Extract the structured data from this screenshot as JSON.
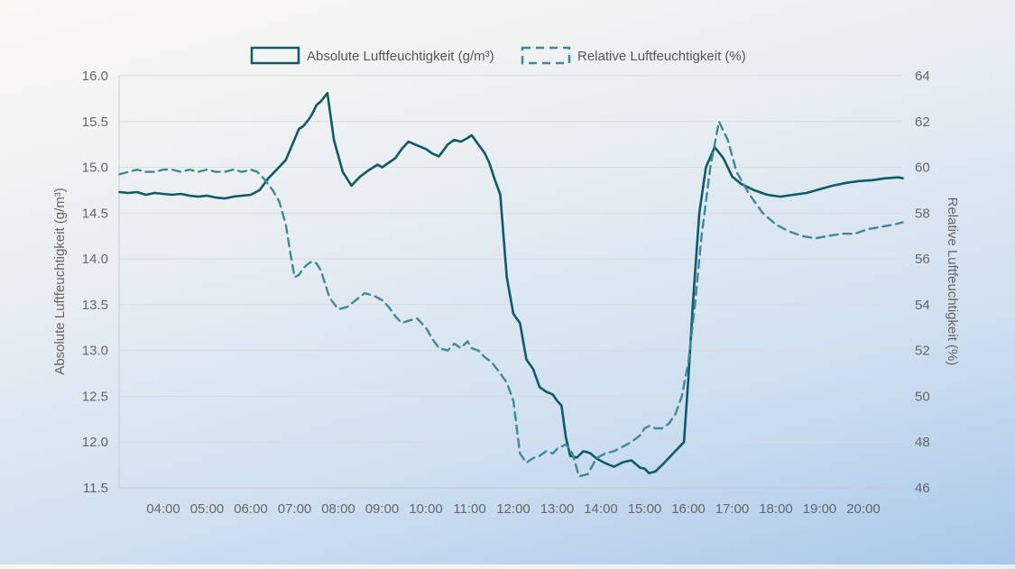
{
  "chart_data": {
    "type": "line",
    "legend_position": "top-center",
    "grid": true,
    "colors": {
      "absolute": "#0e5a66",
      "relative": "#3f8a92",
      "grid": "#d6dbe0",
      "axis": "#c4ccd4",
      "text": "#666666"
    },
    "x_axis": {
      "label": "",
      "ticks": [
        "04:00",
        "05:00",
        "06:00",
        "07:00",
        "08:00",
        "09:00",
        "10:00",
        "11:00",
        "12:00",
        "13:00",
        "14:00",
        "15:00",
        "16:00",
        "17:00",
        "18:00",
        "19:00",
        "20:00"
      ]
    },
    "y_left": {
      "label": "Absolute Luftfeuchtigkeit (g/m³)",
      "min": 11.5,
      "max": 16.0,
      "ticks": [
        "11.5",
        "12.0",
        "12.5",
        "13.0",
        "13.5",
        "14.0",
        "14.5",
        "15.0",
        "15.5",
        "16.0"
      ]
    },
    "y_right": {
      "label": "Relative Luftfeuchtigkeit (%)",
      "min": 46,
      "max": 64,
      "ticks": [
        "46",
        "48",
        "50",
        "52",
        "54",
        "56",
        "58",
        "60",
        "62",
        "64"
      ]
    },
    "x_range_hours": [
      3.0,
      20.9
    ],
    "series": [
      {
        "name": "Absolute Luftfeuchtigkeit (g/m³)",
        "axis": "left",
        "style": "solid",
        "x": [
          3.0,
          3.2,
          3.4,
          3.6,
          3.8,
          4.0,
          4.2,
          4.4,
          4.6,
          4.8,
          5.0,
          5.2,
          5.4,
          5.6,
          5.8,
          6.0,
          6.2,
          6.4,
          6.6,
          6.8,
          6.95,
          7.1,
          7.2,
          7.32,
          7.4,
          7.5,
          7.6,
          7.75,
          7.9,
          8.1,
          8.3,
          8.5,
          8.7,
          8.9,
          9.0,
          9.15,
          9.3,
          9.45,
          9.6,
          9.8,
          10.0,
          10.15,
          10.3,
          10.5,
          10.65,
          10.8,
          10.95,
          11.05,
          11.2,
          11.35,
          11.45,
          11.55,
          11.7,
          11.85,
          12.0,
          12.15,
          12.3,
          12.45,
          12.6,
          12.75,
          12.9,
          13.0,
          13.1,
          13.2,
          13.3,
          13.45,
          13.6,
          13.75,
          13.9,
          14.1,
          14.3,
          14.5,
          14.7,
          14.9,
          15.0,
          15.1,
          15.25,
          15.4,
          15.5,
          15.6,
          15.7,
          15.8,
          15.9,
          16.0,
          16.1,
          16.25,
          16.4,
          16.6,
          16.8,
          17.0,
          17.2,
          17.5,
          17.8,
          18.1,
          18.4,
          18.7,
          19.0,
          19.3,
          19.6,
          19.9,
          20.2,
          20.5,
          20.8,
          20.9
        ],
        "values": [
          14.73,
          14.72,
          14.73,
          14.7,
          14.72,
          14.71,
          14.7,
          14.71,
          14.69,
          14.68,
          14.69,
          14.67,
          14.66,
          14.68,
          14.69,
          14.7,
          14.75,
          14.88,
          14.98,
          15.08,
          15.25,
          15.42,
          15.45,
          15.52,
          15.58,
          15.68,
          15.72,
          15.81,
          15.3,
          14.95,
          14.8,
          14.9,
          14.97,
          15.03,
          15.0,
          15.05,
          15.1,
          15.2,
          15.28,
          15.24,
          15.2,
          15.15,
          15.12,
          15.25,
          15.3,
          15.28,
          15.32,
          15.35,
          15.25,
          15.15,
          15.05,
          14.9,
          14.7,
          13.8,
          13.4,
          13.3,
          12.9,
          12.8,
          12.6,
          12.55,
          12.52,
          12.45,
          12.4,
          12.05,
          11.85,
          11.83,
          11.9,
          11.88,
          11.82,
          11.77,
          11.73,
          11.78,
          11.8,
          11.72,
          11.71,
          11.66,
          11.68,
          11.75,
          11.8,
          11.85,
          11.9,
          11.95,
          12.0,
          12.7,
          13.5,
          14.5,
          15.0,
          15.22,
          15.1,
          14.9,
          14.82,
          14.75,
          14.7,
          14.68,
          14.7,
          14.72,
          14.76,
          14.8,
          14.83,
          14.85,
          14.86,
          14.88,
          14.89,
          14.88
        ]
      },
      {
        "name": "Relative Luftfeuchtigkeit (%)",
        "axis": "right",
        "style": "dashed",
        "x": [
          3.0,
          3.2,
          3.4,
          3.6,
          3.8,
          4.0,
          4.2,
          4.4,
          4.6,
          4.8,
          5.0,
          5.2,
          5.4,
          5.6,
          5.8,
          6.0,
          6.15,
          6.3,
          6.5,
          6.65,
          6.8,
          6.9,
          7.0,
          7.1,
          7.2,
          7.32,
          7.4,
          7.5,
          7.6,
          7.8,
          8.0,
          8.2,
          8.4,
          8.6,
          8.8,
          9.0,
          9.15,
          9.3,
          9.45,
          9.6,
          9.8,
          10.0,
          10.15,
          10.3,
          10.5,
          10.65,
          10.8,
          10.95,
          11.05,
          11.2,
          11.35,
          11.5,
          11.7,
          11.85,
          12.0,
          12.15,
          12.3,
          12.45,
          12.6,
          12.75,
          12.9,
          13.0,
          13.1,
          13.2,
          13.35,
          13.5,
          13.7,
          13.9,
          14.1,
          14.3,
          14.5,
          14.7,
          14.9,
          15.0,
          15.1,
          15.25,
          15.4,
          15.55,
          15.7,
          15.85,
          16.0,
          16.15,
          16.3,
          16.5,
          16.7,
          16.9,
          17.1,
          17.4,
          17.7,
          18.0,
          18.3,
          18.6,
          18.9,
          19.2,
          19.5,
          19.8,
          20.1,
          20.4,
          20.7,
          20.9
        ],
        "values": [
          59.7,
          59.8,
          59.9,
          59.8,
          59.8,
          59.9,
          59.9,
          59.8,
          59.9,
          59.8,
          59.9,
          59.8,
          59.8,
          59.9,
          59.8,
          59.9,
          59.8,
          59.5,
          59.0,
          58.5,
          57.5,
          56.3,
          55.2,
          55.3,
          55.6,
          55.8,
          55.9,
          55.8,
          55.5,
          54.3,
          53.8,
          53.9,
          54.2,
          54.5,
          54.4,
          54.2,
          53.9,
          53.5,
          53.2,
          53.3,
          53.4,
          53.0,
          52.5,
          52.1,
          52.0,
          52.3,
          52.1,
          52.4,
          52.1,
          52.0,
          51.7,
          51.5,
          51.0,
          50.6,
          49.8,
          47.5,
          47.1,
          47.3,
          47.4,
          47.6,
          47.5,
          47.7,
          47.8,
          47.9,
          47.5,
          46.5,
          46.6,
          47.3,
          47.5,
          47.6,
          47.8,
          48.0,
          48.3,
          48.6,
          48.7,
          48.6,
          48.6,
          48.8,
          49.2,
          50.0,
          51.5,
          54.0,
          57.0,
          60.0,
          62.0,
          61.2,
          59.8,
          58.8,
          58.0,
          57.5,
          57.2,
          57.0,
          56.9,
          57.0,
          57.1,
          57.1,
          57.3,
          57.4,
          57.5,
          57.6
        ]
      }
    ]
  }
}
